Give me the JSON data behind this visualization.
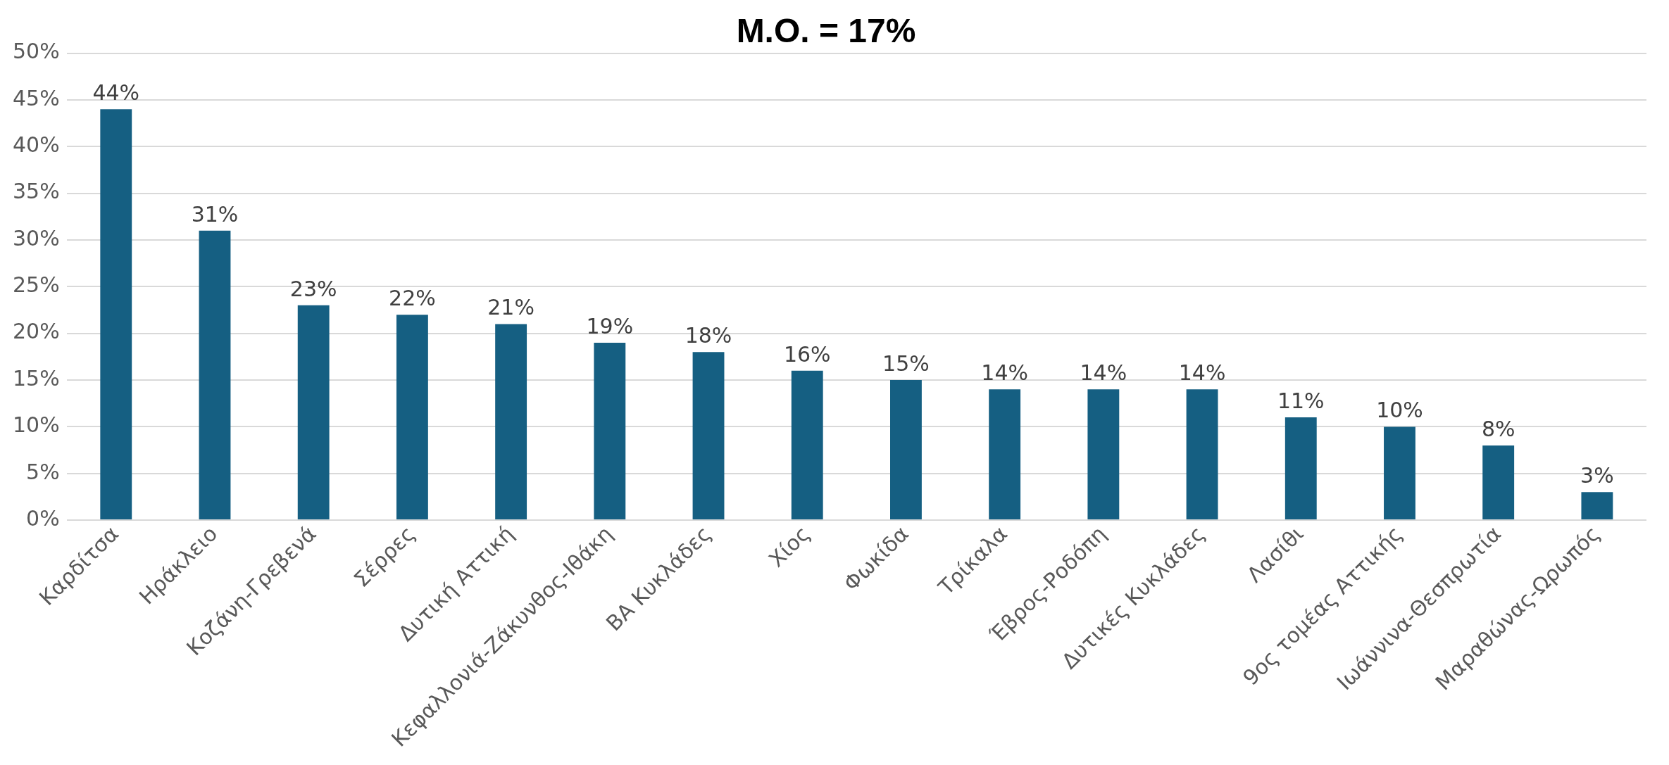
{
  "chart_data": {
    "type": "bar",
    "title": "Μ.Ο. = 17%",
    "categories": [
      "Καρδίτσα",
      "Ηράκλειο",
      "Κοζάνη-Γρεβενά",
      "Σέρρες",
      "Δυτική Αττική",
      "Κεφαλλονιά-Ζάκυνθος-Ιθάκη",
      "ΒΑ Κυκλάδες",
      "Χίος",
      "Φωκίδα",
      "Τρίκαλα",
      "Έβρος-Ροδόπη",
      "Δυτικές Κυκλάδες",
      "Λασίθι",
      "9ος τομέας Αττικής",
      "Ιωάννινα-Θεσπρωτία",
      "Μαραθώνας-Ωρωπός"
    ],
    "values": [
      44,
      31,
      23,
      22,
      21,
      19,
      18,
      16,
      15,
      14,
      14,
      14,
      11,
      10,
      8,
      3
    ],
    "value_labels": [
      "44%",
      "31%",
      "23%",
      "22%",
      "21%",
      "19%",
      "18%",
      "16%",
      "15%",
      "14%",
      "14%",
      "14%",
      "11%",
      "10%",
      "8%",
      "3%"
    ],
    "color": "#155f82",
    "ylim": [
      0,
      50
    ],
    "yticks": [
      {
        "value": 0,
        "label": "0%"
      },
      {
        "value": 5,
        "label": "5%"
      },
      {
        "value": 10,
        "label": "10%"
      },
      {
        "value": 15,
        "label": "15%"
      },
      {
        "value": 20,
        "label": "20%"
      },
      {
        "value": 25,
        "label": "25%"
      },
      {
        "value": 30,
        "label": "30%"
      },
      {
        "value": 35,
        "label": "35%"
      },
      {
        "value": 40,
        "label": "40%"
      },
      {
        "value": 45,
        "label": "45%"
      },
      {
        "value": 50,
        "label": "50%"
      }
    ],
    "grid": "y",
    "legend": false
  }
}
